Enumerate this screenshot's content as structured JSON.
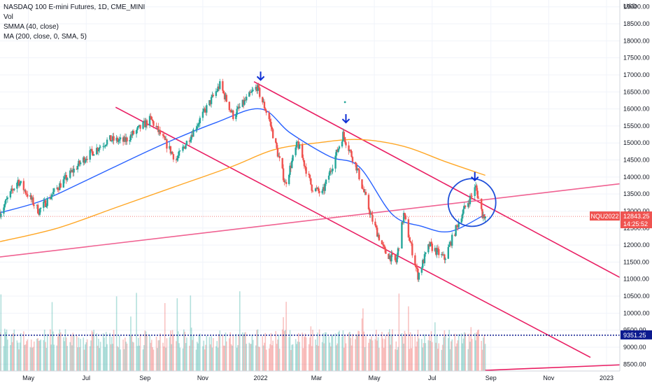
{
  "legend": {
    "title": "NASDAQ 100 E-mini Futures, 1D, CME_MINI",
    "vol": "Vol",
    "smma": "SMMA (40, close)",
    "ma": "MA (200, close, 0, SMA, 5)"
  },
  "chart_data": {
    "type": "candlestick",
    "symbol": "NQU2022",
    "currency": "USD",
    "y_axis": {
      "range": [
        8300,
        19200
      ],
      "ticks": [
        8500,
        9000,
        9500,
        10000,
        10500,
        11000,
        11500,
        12000,
        12500,
        13000,
        13500,
        14000,
        14500,
        15000,
        15500,
        16000,
        16500,
        17000,
        17500,
        18000,
        18500,
        19000
      ],
      "tick_labels": [
        "8500.00",
        "9000.00",
        "9500.00",
        "10000.00",
        "10500.00",
        "11000.00",
        "11500.00",
        "12000.00",
        "12500.00",
        "13000.00",
        "13500.00",
        "14000.00",
        "14500.00",
        "15000.00",
        "15500.00",
        "16000.00",
        "16500.00",
        "17000.00",
        "17500.00",
        "18000.00",
        "18500.00",
        "19000.00"
      ],
      "unit_label": "USD"
    },
    "x_axis": {
      "labels": [
        "May",
        "Jul",
        "Sep",
        "Nov",
        "2022",
        "Mar",
        "May",
        "Jul",
        "Sep",
        "Nov",
        "2023"
      ],
      "dates": [
        "2021-05-01",
        "2021-07-01",
        "2021-09-01",
        "2021-11-01",
        "2022-01-01",
        "2022-03-01",
        "2022-05-01",
        "2022-07-01",
        "2022-09-01",
        "2022-11-01",
        "2023-01-01"
      ]
    },
    "range_dates": [
      "2021-04-01",
      "2023-01-15"
    ],
    "price_keypoints": [
      [
        "2021-04-01",
        12950
      ],
      [
        "2021-04-20",
        13900
      ],
      [
        "2021-05-12",
        13000
      ],
      [
        "2021-06-01",
        13700
      ],
      [
        "2021-07-01",
        14600
      ],
      [
        "2021-07-25",
        15100
      ],
      [
        "2021-08-10",
        15050
      ],
      [
        "2021-09-07",
        15700
      ],
      [
        "2021-10-04",
        14500
      ],
      [
        "2021-10-25",
        15500
      ],
      [
        "2021-11-19",
        16700
      ],
      [
        "2021-12-03",
        15800
      ],
      [
        "2021-12-28",
        16650
      ],
      [
        "2022-01-10",
        15700
      ],
      [
        "2022-01-27",
        13800
      ],
      [
        "2022-02-09",
        15000
      ],
      [
        "2022-02-24",
        13700
      ],
      [
        "2022-03-07",
        13500
      ],
      [
        "2022-03-29",
        15250
      ],
      [
        "2022-04-12",
        14300
      ],
      [
        "2022-04-28",
        12800
      ],
      [
        "2022-05-12",
        11800
      ],
      [
        "2022-05-24",
        11500
      ],
      [
        "2022-06-01",
        12900
      ],
      [
        "2022-06-16",
        11100
      ],
      [
        "2022-06-28",
        12000
      ],
      [
        "2022-07-14",
        11600
      ],
      [
        "2022-08-01",
        12900
      ],
      [
        "2022-08-16",
        13700
      ],
      [
        "2022-08-23",
        12900
      ],
      [
        "2022-08-26",
        12843.25
      ]
    ],
    "volume": {
      "range": [
        0,
        1000000
      ],
      "avg_level": 0.25
    },
    "indicators": {
      "smma": {
        "name": "SMMA (40, close)",
        "color": "#2962FF",
        "points": [
          [
            "2021-04-01",
            12950
          ],
          [
            "2021-05-15",
            13300
          ],
          [
            "2021-07-01",
            13900
          ],
          [
            "2021-09-15",
            14900
          ],
          [
            "2021-11-15",
            15600
          ],
          [
            "2022-01-01",
            16000
          ],
          [
            "2022-02-01",
            15300
          ],
          [
            "2022-03-15",
            14600
          ],
          [
            "2022-04-15",
            14300
          ],
          [
            "2022-05-20",
            12900
          ],
          [
            "2022-06-20",
            12550
          ],
          [
            "2022-07-20",
            12400
          ],
          [
            "2022-08-26",
            12900
          ]
        ]
      },
      "ma200": {
        "name": "MA (200, close, 0, SMA, 5)",
        "color": "#FFA726",
        "points": [
          [
            "2021-04-01",
            12100
          ],
          [
            "2021-06-01",
            12500
          ],
          [
            "2021-08-01",
            13100
          ],
          [
            "2021-10-01",
            13700
          ],
          [
            "2021-12-01",
            14300
          ],
          [
            "2022-01-15",
            14800
          ],
          [
            "2022-03-01",
            15000
          ],
          [
            "2022-04-15",
            15100
          ],
          [
            "2022-06-01",
            14900
          ],
          [
            "2022-07-15",
            14450
          ],
          [
            "2022-08-26",
            14050
          ]
        ]
      }
    },
    "trendlines": [
      {
        "name": "channel-upper",
        "color": "#E91E63",
        "from": [
          "2021-12-25",
          16800
        ],
        "to": [
          "2023-01-15",
          11050
        ]
      },
      {
        "name": "channel-lower",
        "color": "#E91E63",
        "from": [
          "2021-08-01",
          16050
        ],
        "to": [
          "2022-12-15",
          8700
        ]
      },
      {
        "name": "rising-support",
        "color": "#F06292",
        "from": [
          "2021-04-01",
          11650
        ],
        "to": [
          "2023-01-15",
          13800
        ]
      },
      {
        "name": "volume-trendline",
        "color": "#E91E63",
        "from": [
          "2022-08-26",
          8320
        ],
        "to": [
          "2023-01-15",
          8480
        ]
      }
    ],
    "annotations": {
      "arrows": [
        [
          "2022-01-01",
          16850
        ],
        [
          "2022-04-01",
          15600
        ],
        [
          "2022-08-15",
          13900
        ]
      ],
      "circle": {
        "center": [
          "2022-08-12",
          13250
        ],
        "radius_price": 700
      },
      "dot": [
        "2022-03-31",
        16200
      ]
    },
    "price_badge": {
      "label": "NQU2022",
      "price": "12843.25",
      "countdown": "14:25:52",
      "value": 12843.25
    },
    "volume_badge": {
      "value": "9351.25",
      "level": 9351.25
    }
  }
}
